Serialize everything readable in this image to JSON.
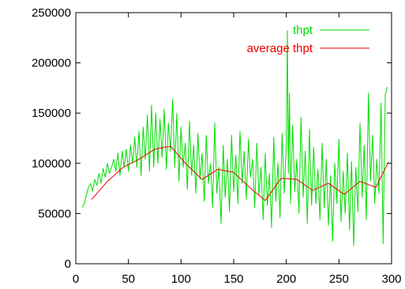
{
  "chart_data": {
    "type": "line",
    "title": "",
    "xlabel": "",
    "ylabel": "",
    "xlim": [
      0,
      300
    ],
    "ylim": [
      0,
      250000
    ],
    "x_ticks": [
      0,
      50,
      100,
      150,
      200,
      250,
      300
    ],
    "y_ticks": [
      0,
      50000,
      100000,
      150000,
      200000,
      250000
    ],
    "grid": false,
    "legend_position": "top-right",
    "series": [
      {
        "name": "thpt",
        "color": "#00dd00",
        "x": [
          6,
          8,
          10,
          12,
          14,
          16,
          18,
          20,
          22,
          24,
          26,
          28,
          30,
          32,
          34,
          36,
          38,
          40,
          42,
          44,
          46,
          48,
          50,
          52,
          54,
          56,
          58,
          60,
          62,
          64,
          66,
          68,
          70,
          72,
          74,
          76,
          78,
          80,
          82,
          84,
          86,
          88,
          90,
          92,
          94,
          96,
          98,
          100,
          102,
          104,
          106,
          108,
          110,
          112,
          114,
          116,
          118,
          120,
          122,
          124,
          126,
          128,
          130,
          132,
          134,
          136,
          138,
          140,
          142,
          144,
          146,
          148,
          150,
          152,
          154,
          156,
          158,
          160,
          162,
          164,
          166,
          168,
          170,
          172,
          174,
          176,
          178,
          180,
          182,
          184,
          186,
          188,
          190,
          192,
          194,
          196,
          198,
          200,
          201,
          202,
          203,
          204,
          206,
          208,
          210,
          212,
          214,
          216,
          218,
          220,
          222,
          224,
          226,
          228,
          230,
          232,
          234,
          236,
          238,
          240,
          242,
          244,
          246,
          248,
          250,
          252,
          254,
          256,
          258,
          260,
          262,
          264,
          266,
          268,
          270,
          272,
          274,
          276,
          278,
          280,
          282,
          284,
          286,
          288,
          290,
          292,
          294,
          296
        ],
        "values": [
          56000,
          60000,
          68000,
          76000,
          80000,
          72000,
          84000,
          78000,
          90000,
          80000,
          95000,
          86000,
          100000,
          90000,
          96000,
          104000,
          92000,
          110000,
          88000,
          112000,
          96000,
          114000,
          92000,
          118000,
          100000,
          126000,
          96000,
          132000,
          88000,
          136000,
          104000,
          148000,
          92000,
          158000,
          96000,
          150000,
          100000,
          144000,
          106000,
          154000,
          94000,
          140000,
          112000,
          164000,
          96000,
          150000,
          82000,
          136000,
          96000,
          120000,
          74000,
          142000,
          88000,
          118000,
          70000,
          130000,
          84000,
          110000,
          62000,
          128000,
          80000,
          100000,
          56000,
          140000,
          70000,
          96000,
          40000,
          118000,
          66000,
          104000,
          52000,
          128000,
          72000,
          108000,
          60000,
          132000,
          80000,
          112000,
          64000,
          124000,
          86000,
          104000,
          56000,
          120000,
          68000,
          96000,
          44000,
          110000,
          58000,
          90000,
          36000,
          126000,
          62000,
          100000,
          46000,
          130000,
          70000,
          118000,
          232000,
          90000,
          170000,
          60000,
          138000,
          72000,
          104000,
          50000,
          146000,
          66000,
          112000,
          40000,
          134000,
          58000,
          116000,
          60000,
          94000,
          44000,
          120000,
          56000,
          104000,
          38000,
          88000,
          22000,
          100000,
          60000,
          124000,
          42000,
          92000,
          50000,
          110000,
          34000,
          102000,
          18000,
          96000,
          52000,
          140000,
          66000,
          118000,
          44000,
          170000,
          82000,
          128000,
          60000,
          104000,
          70000,
          160000,
          20000,
          168000,
          176000
        ]
      },
      {
        "name": "average thpt",
        "color": "#ee0000",
        "x": [
          15,
          30,
          45,
          60,
          75,
          90,
          105,
          120,
          135,
          150,
          165,
          180,
          195,
          210,
          225,
          240,
          255,
          270,
          285,
          297
        ],
        "values": [
          64000,
          82000,
          96000,
          104000,
          114000,
          117000,
          99000,
          84000,
          94000,
          91000,
          76000,
          63000,
          85000,
          84000,
          73000,
          80000,
          69000,
          82000,
          76000,
          101000
        ]
      }
    ]
  }
}
